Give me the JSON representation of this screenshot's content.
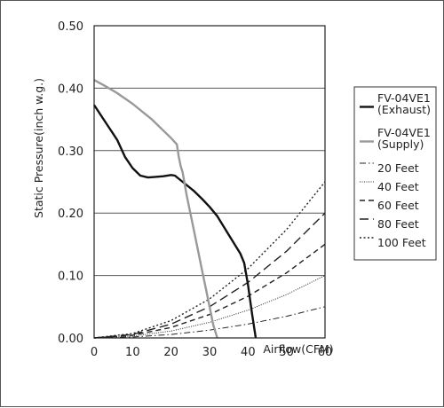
{
  "chart_data": {
    "type": "line",
    "title": "",
    "xlabel": "Airflow(CFM)",
    "ylabel": "Static Pressure(inch w.g.)",
    "xlim": [
      0,
      60
    ],
    "ylim": [
      0,
      0.5
    ],
    "xticks": [
      "0",
      "10",
      "20",
      "30",
      "40",
      "50",
      "60"
    ],
    "yticks": [
      "0.00",
      "0.10",
      "0.20",
      "0.30",
      "0.40",
      "0.50"
    ],
    "grid": "horizontal",
    "legend_position": "right",
    "series": [
      {
        "name": "FV-04VE1 (Exhaust)",
        "label_lines": [
          "FV-04VE1",
          "(Exhaust)"
        ],
        "style": "solid-thick",
        "color": "#111111",
        "x": [
          0,
          3,
          6,
          8,
          10,
          12,
          14,
          16,
          18,
          20,
          21,
          22,
          24,
          26,
          28,
          30,
          32,
          34,
          36,
          38,
          39,
          40,
          41,
          42
        ],
        "y": [
          0.373,
          0.345,
          0.317,
          0.29,
          0.272,
          0.26,
          0.257,
          0.258,
          0.259,
          0.261,
          0.26,
          0.255,
          0.245,
          0.235,
          0.223,
          0.21,
          0.195,
          0.175,
          0.155,
          0.135,
          0.12,
          0.085,
          0.04,
          0.0
        ]
      },
      {
        "name": "FV-04VE1 (Supply)",
        "label_lines": [
          "FV-04VE1",
          "(Supply)"
        ],
        "style": "solid-gray",
        "color": "#999999",
        "x": [
          0,
          3,
          6,
          10,
          15,
          20,
          21.5,
          22,
          22.5,
          23,
          24,
          26,
          28,
          29,
          30,
          31,
          32
        ],
        "y": [
          0.413,
          0.403,
          0.392,
          0.375,
          0.35,
          0.32,
          0.31,
          0.29,
          0.275,
          0.265,
          0.23,
          0.17,
          0.11,
          0.08,
          0.05,
          0.02,
          0.0
        ]
      },
      {
        "name": "20 Feet",
        "style": "dashdot",
        "color": "#222222",
        "x": [
          0,
          10,
          20,
          30,
          40,
          50,
          60
        ],
        "y": [
          0.0,
          0.0014,
          0.0056,
          0.0125,
          0.0222,
          0.0347,
          0.05
        ]
      },
      {
        "name": "40 Feet",
        "style": "fine-dot",
        "color": "#222222",
        "x": [
          0,
          10,
          20,
          30,
          40,
          50,
          60
        ],
        "y": [
          0.0,
          0.0028,
          0.0111,
          0.025,
          0.0444,
          0.0694,
          0.1
        ]
      },
      {
        "name": "60 Feet",
        "style": "dash",
        "color": "#222222",
        "x": [
          0,
          10,
          20,
          30,
          40,
          50,
          60
        ],
        "y": [
          0.0,
          0.0042,
          0.0167,
          0.0375,
          0.0667,
          0.1042,
          0.15
        ]
      },
      {
        "name": "80 Feet",
        "style": "long-dash",
        "color": "#222222",
        "x": [
          0,
          10,
          20,
          30,
          40,
          50,
          60
        ],
        "y": [
          0.0,
          0.0056,
          0.0222,
          0.05,
          0.0889,
          0.1389,
          0.2
        ]
      },
      {
        "name": "100 Feet",
        "style": "dot",
        "color": "#222222",
        "x": [
          0,
          10,
          20,
          30,
          40,
          50,
          60
        ],
        "y": [
          0.0,
          0.0069,
          0.0278,
          0.0625,
          0.1111,
          0.1736,
          0.25
        ]
      }
    ]
  }
}
